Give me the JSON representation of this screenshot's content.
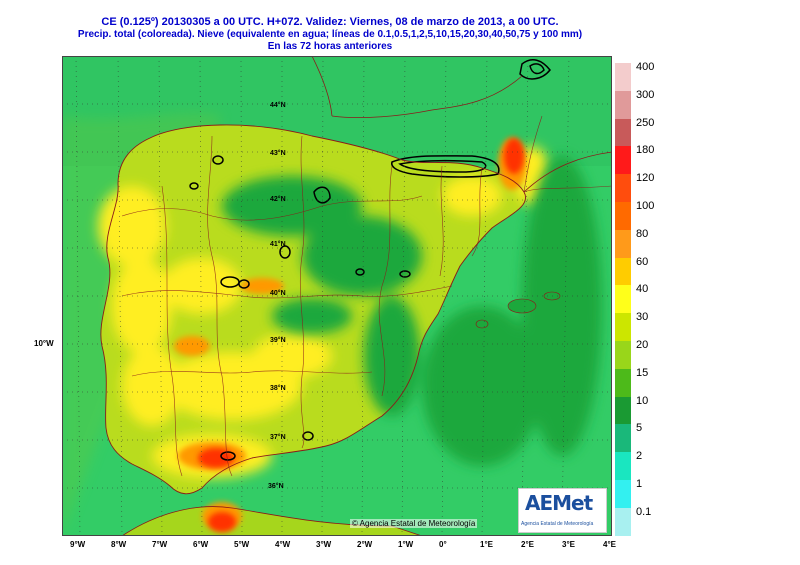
{
  "title": {
    "line1": "CE (0.125º) 20130305 a 00 UTC.  H+072. Validez: Viernes, 08 de marzo de 2013,  a  00 UTC.",
    "line2": "Precip. total (coloreada). Nieve (equivalente en agua; líneas de 0.1,0.5,1,2,5,10,15,20,30,40,50,75 y 100 mm)",
    "line3": "En las 72 horas anteriores"
  },
  "credit": "© Agencia Estatal de Meteorología",
  "logo": {
    "word": "AEMet",
    "subtitle": "Agencia Estatal de Meteorología"
  },
  "axis": {
    "lon_side": "10°W",
    "lon_labels": [
      "9°W",
      "8°W",
      "7°W",
      "6°W",
      "5°W",
      "4°W",
      "3°W",
      "2°W",
      "1°W",
      "0°",
      "1°E",
      "2°E",
      "3°E",
      "4°E"
    ],
    "lat_labels": [
      "44°N",
      "43°N",
      "42°N",
      "41°N",
      "40°N",
      "39°N",
      "38°N",
      "37°N",
      "36°N"
    ]
  },
  "legend": {
    "labels": [
      "400",
      "300",
      "250",
      "180",
      "120",
      "100",
      "80",
      "60",
      "40",
      "30",
      "20",
      "15",
      "10",
      "5",
      "2",
      "1",
      "0.1"
    ],
    "colors": [
      "#f3cccc",
      "#e09a9a",
      "#c85a5a",
      "#ff1a1a",
      "#ff4d0d",
      "#ff6a00",
      "#ff9a1a",
      "#ffcc00",
      "#ffff1a",
      "#cce600",
      "#99d61a",
      "#4dba1a",
      "#1a9a33",
      "#1ab87a",
      "#1ae6c0",
      "#33f0f0",
      "#a8f0f0"
    ]
  },
  "palette": {
    "sea": "#33cc66",
    "land_low": "#99d61a",
    "land_mid": "#ccdd22",
    "land_high": "#ffee22",
    "orange": "#ff9900",
    "red": "#ff3300",
    "green": "#1ca83c",
    "border": "#8b1a1a"
  }
}
